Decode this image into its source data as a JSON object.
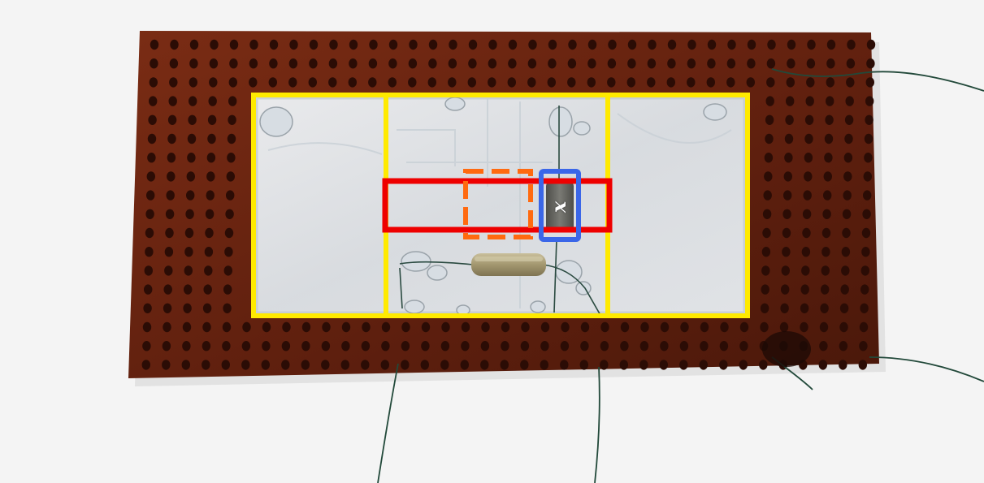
{
  "photo": {
    "background_color": "#f4f4f4",
    "board_color": "#6a2411",
    "hole_color": "#2b0c05",
    "glass_color": "#dfe6ec",
    "wire_color": "#1f4a3c",
    "resistor_color": "#a89d7a",
    "sensor_color": "#6e6e6a",
    "droplet_color": "#d9dee4"
  },
  "annotations": {
    "yellow_color": "#ffea00",
    "red_color": "#ee0000",
    "orange_color": "#ff6a10",
    "blue_color": "#3a66e8",
    "sensor_label": "x"
  }
}
